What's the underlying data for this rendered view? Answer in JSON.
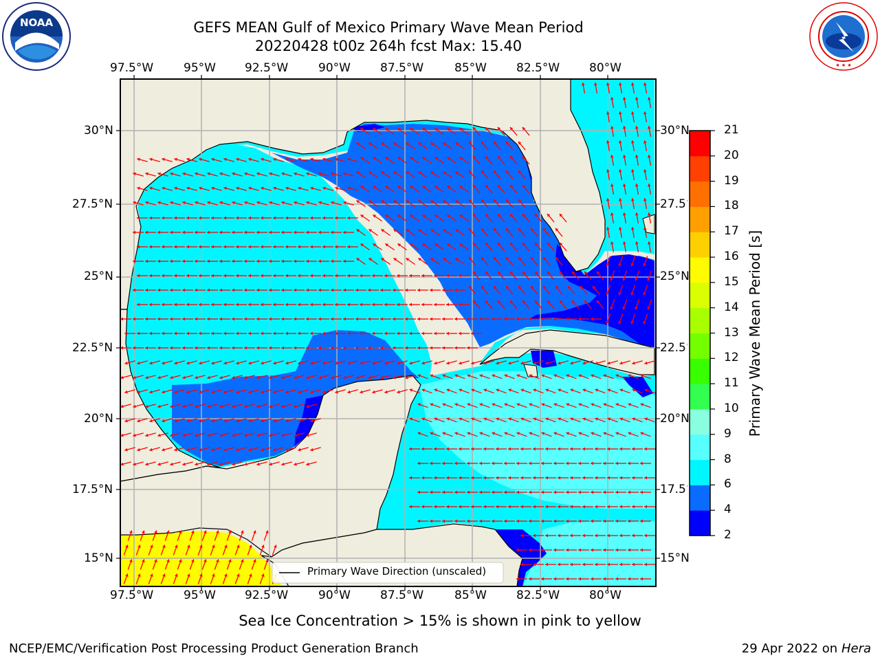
{
  "title": {
    "line1": "GEFS MEAN Gulf of Mexico Primary Wave Mean Period",
    "line2": "20220428 t00z 264h fcst   Max: 15.40"
  },
  "logos": {
    "noaa_text": "NOAA",
    "noaa_ring": "NATIONAL OCEANIC AND ATMOSPHERIC ADMINISTRATION · U.S. DEPARTMENT OF COMMERCE",
    "nws_ring": "NATIONAL WEATHER SERVICE"
  },
  "axes": {
    "lon_ticks": [
      "97.5°W",
      "95°W",
      "92.5°W",
      "90°W",
      "87.5°W",
      "85°W",
      "82.5°W",
      "80°W"
    ],
    "lat_ticks_left": [
      "30°N",
      "27.5°N",
      "25°N",
      "22.5°N",
      "20°N",
      "17.5°N",
      "15°N"
    ],
    "lat_ticks_right": [
      "30°N",
      "27.5°N",
      "25°N",
      "22.5°N",
      "20°N",
      "17.5°N",
      "15°N"
    ]
  },
  "legend": {
    "label": "Primary Wave Direction (unscaled)"
  },
  "colorbar": {
    "label": "Primary Wave Mean Period [s]",
    "ticks": [
      "2",
      "4",
      "6",
      "8",
      "9",
      "10",
      "11",
      "12",
      "13",
      "14",
      "15",
      "16",
      "17",
      "18",
      "19",
      "20",
      "21"
    ],
    "colors": [
      "#0000ff",
      "#0a6cff",
      "#00f6ff",
      "#57ffff",
      "#8affe0",
      "#32ff50",
      "#38ff00",
      "#74ff00",
      "#a8ff00",
      "#d9ff00",
      "#fffb00",
      "#ffd000",
      "#ffa000",
      "#ff7000",
      "#ff4000",
      "#ff0000"
    ]
  },
  "note": "Sea Ice Concentration > 15% is shown in pink to yellow",
  "footer": {
    "left": "NCEP/EMC/Verification Post Processing Product Generation Branch",
    "right_date": "29 Apr 2022 on ",
    "right_host": "Hera"
  },
  "map_colors": {
    "land": "#efedde",
    "ocean_6_8": "#00f6ff",
    "ocean_4_6": "#0a6cff",
    "ocean_2_4": "#0000ff",
    "ocean_8_9": "#57ffff",
    "ocean_15_16": "#fffb00",
    "arrow": "#ff0000",
    "grid": "#b0b0b0"
  }
}
